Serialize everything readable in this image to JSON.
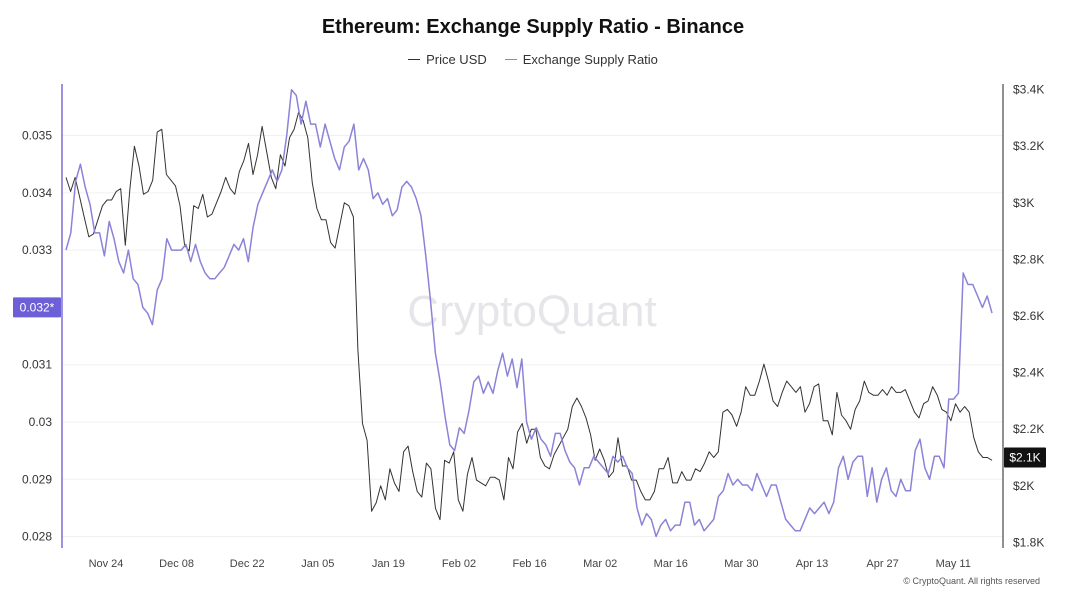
{
  "chart_data": {
    "type": "line",
    "title": "Ethereum: Exchange Supply Ratio - Binance",
    "x_labels": [
      "Nov 24",
      "Dec 08",
      "Dec 22",
      "Jan 05",
      "Jan 19",
      "Feb 02",
      "Feb 16",
      "Mar 02",
      "Mar 16",
      "Mar 30",
      "Apr 13",
      "Apr 27",
      "May 11"
    ],
    "left_axis": {
      "ticks": [
        "0.028",
        "0.029",
        "0.03",
        "0.031",
        "0.033",
        "0.034",
        "0.035"
      ],
      "current_label": "0.032*",
      "range": [
        0.0278,
        0.0359
      ]
    },
    "right_axis": {
      "ticks": [
        "$1.8K",
        "$2K",
        "$2.2K",
        "$2.4K",
        "$2.6K",
        "$2.8K",
        "$3K",
        "$3.2K",
        "$3.4K"
      ],
      "current_label": "$2.1K",
      "range": [
        1.78,
        3.42
      ]
    },
    "series": [
      {
        "name": "Price USD",
        "color": "#333333",
        "axis": "right",
        "values": [
          3.09,
          3.04,
          3.09,
          3.02,
          2.95,
          2.88,
          2.89,
          2.94,
          2.99,
          3.01,
          3.01,
          3.04,
          3.05,
          2.85,
          3.05,
          3.2,
          3.13,
          3.03,
          3.04,
          3.08,
          3.25,
          3.26,
          3.1,
          3.08,
          3.06,
          2.99,
          2.85,
          2.83,
          2.99,
          2.98,
          3.03,
          2.95,
          2.96,
          3.0,
          3.04,
          3.09,
          3.05,
          3.03,
          3.11,
          3.15,
          3.21,
          3.1,
          3.17,
          3.27,
          3.18,
          3.09,
          3.05,
          3.17,
          3.13,
          3.23,
          3.26,
          3.32,
          3.29,
          3.23,
          3.07,
          2.98,
          2.94,
          2.94,
          2.86,
          2.84,
          2.92,
          3.0,
          2.99,
          2.95,
          2.48,
          2.22,
          2.16,
          1.91,
          1.94,
          2.0,
          1.95,
          2.06,
          2.01,
          1.98,
          2.12,
          2.14,
          2.05,
          1.98,
          1.96,
          2.08,
          2.06,
          1.92,
          1.88,
          2.09,
          2.08,
          2.12,
          1.95,
          1.91,
          2.04,
          2.1,
          2.02,
          2.01,
          2.0,
          2.03,
          2.03,
          2.02,
          1.95,
          2.1,
          2.06,
          2.19,
          2.22,
          2.15,
          2.2,
          2.2,
          2.1,
          2.07,
          2.06,
          2.11,
          2.14,
          2.17,
          2.2,
          2.28,
          2.31,
          2.28,
          2.24,
          2.18,
          2.09,
          2.13,
          2.09,
          2.03,
          2.05,
          2.17,
          2.07,
          2.07,
          2.02,
          2.02,
          1.98,
          1.95,
          1.95,
          1.98,
          2.06,
          2.06,
          2.1,
          2.01,
          2.01,
          2.05,
          2.02,
          2.02,
          2.06,
          2.05,
          2.08,
          2.12,
          2.1,
          2.12,
          2.26,
          2.27,
          2.25,
          2.21,
          2.26,
          2.35,
          2.32,
          2.32,
          2.37,
          2.43,
          2.37,
          2.3,
          2.28,
          2.33,
          2.37,
          2.35,
          2.33,
          2.35,
          2.26,
          2.29,
          2.35,
          2.36,
          2.23,
          2.23,
          2.18,
          2.33,
          2.25,
          2.23,
          2.2,
          2.27,
          2.3,
          2.37,
          2.33,
          2.32,
          2.32,
          2.34,
          2.32,
          2.35,
          2.33,
          2.33,
          2.34,
          2.3,
          2.26,
          2.24,
          2.29,
          2.3,
          2.35,
          2.32,
          2.27,
          2.26,
          2.23,
          2.29,
          2.26,
          2.28,
          2.26,
          2.17,
          2.12,
          2.1,
          2.1,
          2.09
        ]
      },
      {
        "name": "Exchange Supply Ratio",
        "color": "#8a83d8",
        "axis": "left",
        "values": [
          0.033,
          0.0333,
          0.0342,
          0.0345,
          0.0341,
          0.0338,
          0.0333,
          0.0333,
          0.0329,
          0.0335,
          0.0332,
          0.0328,
          0.0326,
          0.033,
          0.0325,
          0.0324,
          0.032,
          0.0319,
          0.0317,
          0.0323,
          0.0325,
          0.0332,
          0.033,
          0.033,
          0.033,
          0.0331,
          0.0328,
          0.0331,
          0.0328,
          0.0326,
          0.0325,
          0.0325,
          0.0326,
          0.0327,
          0.0329,
          0.0331,
          0.033,
          0.0332,
          0.0328,
          0.0334,
          0.0338,
          0.034,
          0.0342,
          0.0344,
          0.0342,
          0.0344,
          0.035,
          0.0358,
          0.0357,
          0.0352,
          0.0356,
          0.0352,
          0.0352,
          0.0348,
          0.0352,
          0.0349,
          0.0346,
          0.0344,
          0.0348,
          0.0349,
          0.0352,
          0.0344,
          0.0346,
          0.0344,
          0.0339,
          0.034,
          0.0338,
          0.0339,
          0.0336,
          0.0337,
          0.0341,
          0.0342,
          0.0341,
          0.0339,
          0.0336,
          0.0329,
          0.0321,
          0.0312,
          0.0307,
          0.0301,
          0.0296,
          0.0295,
          0.0299,
          0.0298,
          0.0302,
          0.0307,
          0.0308,
          0.0305,
          0.0307,
          0.0305,
          0.0309,
          0.0312,
          0.0308,
          0.0311,
          0.0306,
          0.0311,
          0.03,
          0.0297,
          0.0299,
          0.0297,
          0.0296,
          0.0294,
          0.0298,
          0.0298,
          0.0295,
          0.0293,
          0.0292,
          0.0289,
          0.0292,
          0.0292,
          0.0294,
          0.0293,
          0.0292,
          0.0291,
          0.0294,
          0.0293,
          0.0294,
          0.0292,
          0.0291,
          0.0285,
          0.0282,
          0.0284,
          0.0283,
          0.028,
          0.0282,
          0.0283,
          0.0281,
          0.0282,
          0.0282,
          0.0286,
          0.0286,
          0.0282,
          0.0283,
          0.0281,
          0.0282,
          0.0283,
          0.0287,
          0.0288,
          0.0291,
          0.0289,
          0.029,
          0.0289,
          0.0289,
          0.0288,
          0.0291,
          0.0289,
          0.0287,
          0.0289,
          0.0289,
          0.0286,
          0.0283,
          0.0282,
          0.0281,
          0.0281,
          0.0283,
          0.0285,
          0.0284,
          0.0285,
          0.0286,
          0.0284,
          0.0286,
          0.0292,
          0.0294,
          0.029,
          0.0293,
          0.0294,
          0.0294,
          0.0287,
          0.0292,
          0.0286,
          0.029,
          0.0292,
          0.0288,
          0.0287,
          0.029,
          0.0288,
          0.0288,
          0.0295,
          0.0297,
          0.0292,
          0.029,
          0.0294,
          0.0294,
          0.0292,
          0.0304,
          0.0304,
          0.0305,
          0.0326,
          0.0324,
          0.0324,
          0.0322,
          0.032,
          0.0322,
          0.0319
        ]
      }
    ]
  },
  "copyright": "© CryptoQuant. All rights reserved",
  "watermark": "CryptoQuant"
}
